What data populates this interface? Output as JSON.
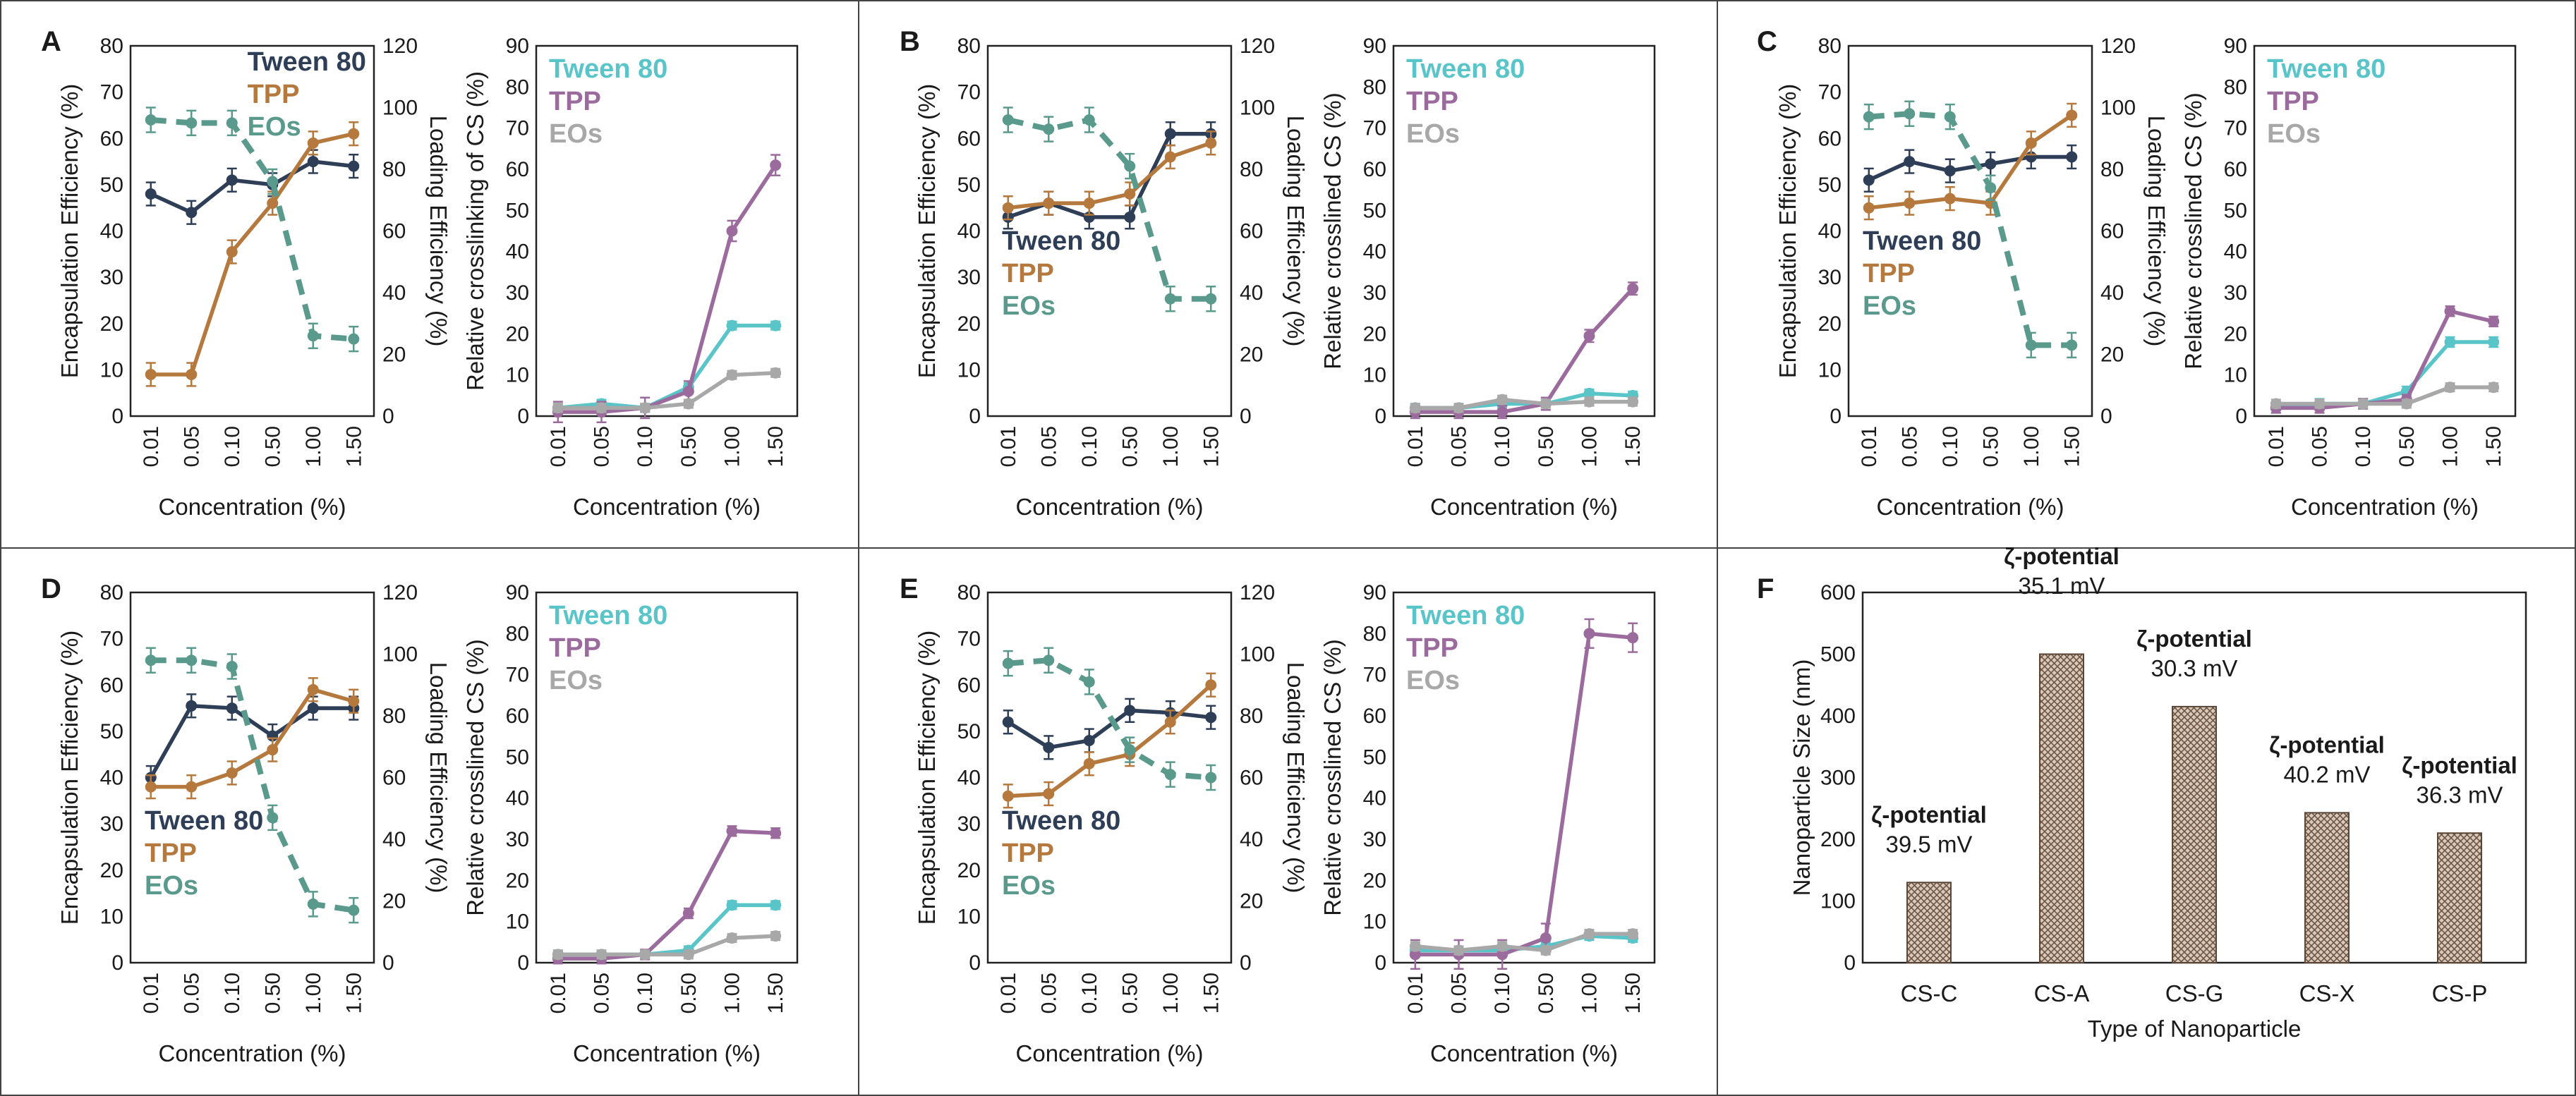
{
  "colors": {
    "tween": "#2e3e57",
    "tpp": "#b5783d",
    "eos": "#5a9a8c",
    "tween_cs": "#5ac5c8",
    "tpp_cs": "#9c6b9e",
    "eos_cs": "#a8a8a8",
    "bar": "#b5a090"
  },
  "chart_data": [
    {
      "type": "line",
      "panel": "A",
      "xlabel": "Concentration (%)",
      "ylabel": "Encapsulation Efficiency (%)",
      "y2label": "Loading Efficiency (%)",
      "categories": [
        "0.01",
        "0.05",
        "0.10",
        "0.50",
        "1.00",
        "1.50"
      ],
      "ylim": [
        0,
        80
      ],
      "y2lim": [
        0,
        120
      ],
      "yticks": [
        0,
        10,
        20,
        30,
        40,
        50,
        60,
        70,
        80
      ],
      "y2ticks": [
        0,
        20,
        40,
        60,
        80,
        100,
        120
      ],
      "legend": "top-right",
      "series": [
        {
          "name": "Tween 80",
          "key": "tween",
          "values": [
            48,
            44,
            51,
            50,
            55,
            54
          ],
          "err": 2.5
        },
        {
          "name": "TPP",
          "key": "tpp",
          "values": [
            9,
            9,
            35.5,
            46,
            59,
            61
          ],
          "err": 2.5
        },
        {
          "name": "EOs",
          "key": "eos",
          "values": [
            96,
            95,
            95,
            76,
            26,
            25
          ],
          "axis": "y2",
          "dashed": true,
          "err": 4
        }
      ]
    },
    {
      "type": "line",
      "panel": "A2",
      "xlabel": "Concentration (%)",
      "ylabel": "Relative crosslinking of CS (%)",
      "categories": [
        "0.01",
        "0.05",
        "0.10",
        "0.50",
        "1.00",
        "1.50"
      ],
      "ylim": [
        0,
        90
      ],
      "yticks": [
        0,
        10,
        20,
        30,
        40,
        50,
        60,
        70,
        80,
        90
      ],
      "legend": "top-left",
      "series": [
        {
          "name": "Tween 80",
          "key": "tween_cs",
          "values": [
            2,
            3,
            2,
            7,
            22,
            22
          ],
          "err": 1
        },
        {
          "name": "TPP",
          "key": "tpp_cs",
          "values": [
            1,
            1,
            2,
            6,
            45,
            61
          ],
          "err": 2.5
        },
        {
          "name": "EOs",
          "key": "eos_cs",
          "values": [
            2,
            2,
            2,
            3,
            10,
            10.5
          ],
          "err": 1
        }
      ]
    },
    {
      "type": "line",
      "panel": "B",
      "xlabel": "Concentration (%)",
      "ylabel": "Encapsulation Efficiency (%)",
      "y2label": "Loading Efficiency (%)",
      "categories": [
        "0.01",
        "0.05",
        "0.10",
        "0.50",
        "1.00",
        "1.50"
      ],
      "ylim": [
        0,
        80
      ],
      "y2lim": [
        0,
        120
      ],
      "yticks": [
        0,
        10,
        20,
        30,
        40,
        50,
        60,
        70,
        80
      ],
      "y2ticks": [
        0,
        20,
        40,
        60,
        80,
        100,
        120
      ],
      "legend": "mid-left",
      "series": [
        {
          "name": "Tween 80",
          "key": "tween",
          "values": [
            43,
            46,
            43,
            43,
            61,
            61
          ],
          "err": 2.5
        },
        {
          "name": "TPP",
          "key": "tpp",
          "values": [
            45,
            46,
            46,
            48,
            56,
            59
          ],
          "err": 2.5
        },
        {
          "name": "EOs",
          "key": "eos",
          "values": [
            96,
            93,
            96,
            81,
            38,
            38
          ],
          "axis": "y2",
          "dashed": true,
          "err": 4
        }
      ]
    },
    {
      "type": "line",
      "panel": "B2",
      "xlabel": "Concentration (%)",
      "ylabel": "Relative crosslined CS (%)",
      "categories": [
        "0.01",
        "0.05",
        "0.10",
        "0.50",
        "1.00",
        "1.50"
      ],
      "ylim": [
        0,
        90
      ],
      "yticks": [
        0,
        10,
        20,
        30,
        40,
        50,
        60,
        70,
        80,
        90
      ],
      "legend": "top-left",
      "series": [
        {
          "name": "Tween 80",
          "key": "tween_cs",
          "values": [
            2,
            2,
            3,
            3,
            5.5,
            5
          ],
          "err": 1
        },
        {
          "name": "TPP",
          "key": "tpp_cs",
          "values": [
            1,
            1,
            1,
            3,
            19.5,
            31
          ],
          "err": 1.5
        },
        {
          "name": "EOs",
          "key": "eos_cs",
          "values": [
            2,
            2,
            4,
            3,
            3.5,
            3.5
          ],
          "err": 1
        }
      ]
    },
    {
      "type": "line",
      "panel": "C",
      "xlabel": "Concentration (%)",
      "ylabel": "Encapsulation Efficiency (%)",
      "y2label": "Loading Efficiency (%)",
      "categories": [
        "0.01",
        "0.05",
        "0.10",
        "0.50",
        "1.00",
        "1.50"
      ],
      "ylim": [
        0,
        80
      ],
      "y2lim": [
        0,
        120
      ],
      "yticks": [
        0,
        10,
        20,
        30,
        40,
        50,
        60,
        70,
        80
      ],
      "y2ticks": [
        0,
        20,
        40,
        60,
        80,
        100,
        120
      ],
      "legend": "mid-left",
      "series": [
        {
          "name": "Tween 80",
          "key": "tween",
          "values": [
            51,
            55,
            53,
            54.5,
            56,
            56
          ],
          "err": 2.5
        },
        {
          "name": "TPP",
          "key": "tpp",
          "values": [
            45,
            46,
            47,
            46,
            59,
            65
          ],
          "err": 2.5
        },
        {
          "name": "EOs",
          "key": "eos",
          "values": [
            97,
            98,
            97,
            74,
            23,
            23
          ],
          "axis": "y2",
          "dashed": true,
          "err": 4
        }
      ]
    },
    {
      "type": "line",
      "panel": "C2",
      "xlabel": "Concentration (%)",
      "ylabel": "Relative crosslined CS (%)",
      "categories": [
        "0.01",
        "0.05",
        "0.10",
        "0.50",
        "1.00",
        "1.50"
      ],
      "ylim": [
        0,
        90
      ],
      "yticks": [
        0,
        10,
        20,
        30,
        40,
        50,
        60,
        70,
        80,
        90
      ],
      "legend": "top-left",
      "series": [
        {
          "name": "Tween 80",
          "key": "tween_cs",
          "values": [
            2,
            3,
            3,
            6,
            18,
            18
          ],
          "err": 1.2
        },
        {
          "name": "TPP",
          "key": "tpp_cs",
          "values": [
            2,
            2,
            3,
            4,
            25.5,
            23
          ],
          "err": 1.2
        },
        {
          "name": "EOs",
          "key": "eos_cs",
          "values": [
            3,
            3,
            3,
            3,
            7,
            7
          ],
          "err": 1
        }
      ]
    },
    {
      "type": "line",
      "panel": "D",
      "xlabel": "Concentration (%)",
      "ylabel": "Encapsulation Efficiency (%)",
      "y2label": "Loading Efficiency (%)",
      "categories": [
        "0.01",
        "0.05",
        "0.10",
        "0.50",
        "1.00",
        "1.50"
      ],
      "ylim": [
        0,
        80
      ],
      "y2lim": [
        0,
        120
      ],
      "yticks": [
        0,
        10,
        20,
        30,
        40,
        50,
        60,
        70,
        80
      ],
      "y2ticks": [
        0,
        20,
        40,
        60,
        80,
        100,
        120
      ],
      "legend": "bottom-left",
      "series": [
        {
          "name": "Tween 80",
          "key": "tween",
          "values": [
            40,
            55.5,
            55,
            49,
            55,
            55
          ],
          "err": 2.5
        },
        {
          "name": "TPP",
          "key": "tpp",
          "values": [
            38,
            38,
            41,
            46,
            59,
            56.5
          ],
          "err": 2.5
        },
        {
          "name": "EOs",
          "key": "eos",
          "values": [
            98,
            98,
            96,
            47,
            19,
            17
          ],
          "axis": "y2",
          "dashed": true,
          "err": 4
        }
      ]
    },
    {
      "type": "line",
      "panel": "D2",
      "xlabel": "Concentration (%)",
      "ylabel": "Relative crosslined CS (%)",
      "categories": [
        "0.01",
        "0.05",
        "0.10",
        "0.50",
        "1.00",
        "1.50"
      ],
      "ylim": [
        0,
        90
      ],
      "yticks": [
        0,
        10,
        20,
        30,
        40,
        50,
        60,
        70,
        80,
        90
      ],
      "legend": "top-left",
      "series": [
        {
          "name": "Tween 80",
          "key": "tween_cs",
          "values": [
            2,
            2,
            2,
            3,
            14,
            14
          ],
          "err": 1
        },
        {
          "name": "TPP",
          "key": "tpp_cs",
          "values": [
            1,
            1,
            2,
            12,
            32,
            31.5
          ],
          "err": 1.2
        },
        {
          "name": "EOs",
          "key": "eos_cs",
          "values": [
            2,
            2,
            2,
            2,
            6,
            6.5
          ],
          "err": 1
        }
      ]
    },
    {
      "type": "line",
      "panel": "E",
      "xlabel": "Concentration (%)",
      "ylabel": "Encapsulation Efficiency (%)",
      "y2label": "Loading Efficiency (%)",
      "categories": [
        "0.01",
        "0.05",
        "0.10",
        "0.50",
        "1.00",
        "1.50"
      ],
      "ylim": [
        0,
        80
      ],
      "y2lim": [
        0,
        120
      ],
      "yticks": [
        0,
        10,
        20,
        30,
        40,
        50,
        60,
        70,
        80
      ],
      "y2ticks": [
        0,
        20,
        40,
        60,
        80,
        100,
        120
      ],
      "legend": "bottom-left",
      "series": [
        {
          "name": "Tween 80",
          "key": "tween",
          "values": [
            52,
            46.5,
            48,
            54.5,
            54,
            53
          ],
          "err": 2.5
        },
        {
          "name": "TPP",
          "key": "tpp",
          "values": [
            36,
            36.5,
            43,
            45,
            52,
            60
          ],
          "err": 2.5
        },
        {
          "name": "EOs",
          "key": "eos",
          "values": [
            97,
            98,
            91,
            69,
            61,
            60
          ],
          "axis": "y2",
          "dashed": true,
          "err": 4
        }
      ]
    },
    {
      "type": "line",
      "panel": "E2",
      "xlabel": "Concentration (%)",
      "ylabel": "Relative crosslined CS (%)",
      "categories": [
        "0.01",
        "0.05",
        "0.10",
        "0.50",
        "1.00",
        "1.50"
      ],
      "ylim": [
        0,
        90
      ],
      "yticks": [
        0,
        10,
        20,
        30,
        40,
        50,
        60,
        70,
        80,
        90
      ],
      "legend": "top-left",
      "series": [
        {
          "name": "Tween 80",
          "key": "tween_cs",
          "values": [
            3,
            3,
            3,
            4,
            6.5,
            6
          ],
          "err": 1
        },
        {
          "name": "TPP",
          "key": "tpp_cs",
          "values": [
            2,
            2,
            2,
            6,
            80,
            79
          ],
          "err": 3.5
        },
        {
          "name": "EOs",
          "key": "eos_cs",
          "values": [
            4,
            3,
            4,
            3,
            7,
            7
          ],
          "err": 1
        }
      ]
    },
    {
      "type": "bar",
      "panel": "F",
      "xlabel": "Type of Nanoparticle",
      "ylabel": "Nanoparticle Size (nm)",
      "categories": [
        "CS-C",
        "CS-A",
        "CS-G",
        "CS-X",
        "CS-P"
      ],
      "values": [
        130,
        500,
        415,
        243,
        210
      ],
      "ylim": [
        0,
        600
      ],
      "yticks": [
        0,
        100,
        200,
        300,
        400,
        500,
        600
      ],
      "annotations": [
        {
          "label": "ζ-potential",
          "value": "39.5 mV"
        },
        {
          "label": "ζ-potential",
          "value": "35.1 mV"
        },
        {
          "label": "ζ-potential",
          "value": "30.3 mV"
        },
        {
          "label": "ζ-potential",
          "value": "40.2 mV"
        },
        {
          "label": "ζ-potential",
          "value": "36.3 mV"
        }
      ]
    }
  ]
}
